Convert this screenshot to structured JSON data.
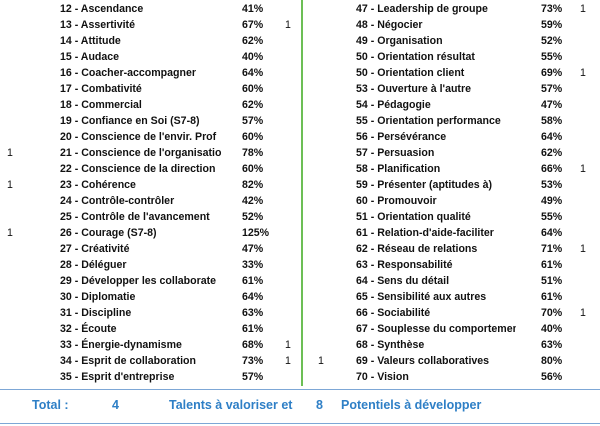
{
  "left_column": [
    {
      "mark": "",
      "label": "12 - Ascendance",
      "pct": "41%",
      "flag": ""
    },
    {
      "mark": "",
      "label": "13 - Assertivité",
      "pct": "67%",
      "flag": "1"
    },
    {
      "mark": "",
      "label": "14 - Attitude",
      "pct": "62%",
      "flag": ""
    },
    {
      "mark": "",
      "label": "15 - Audace",
      "pct": "40%",
      "flag": ""
    },
    {
      "mark": "",
      "label": "16 - Coacher-accompagner",
      "pct": "64%",
      "flag": ""
    },
    {
      "mark": "",
      "label": "17 - Combativité",
      "pct": "60%",
      "flag": ""
    },
    {
      "mark": "",
      "label": "18 - Commercial",
      "pct": "62%",
      "flag": ""
    },
    {
      "mark": "",
      "label": "19 - Confiance en Soi (S7-8)",
      "pct": "57%",
      "flag": ""
    },
    {
      "mark": "",
      "label": "20 - Conscience de l'envir. Prof",
      "pct": "60%",
      "flag": ""
    },
    {
      "mark": "1",
      "label": "21 - Conscience de l'organisatio",
      "pct": "78%",
      "flag": ""
    },
    {
      "mark": "",
      "label": "22 - Conscience de la direction",
      "pct": "60%",
      "flag": ""
    },
    {
      "mark": "1",
      "label": "23 - Cohérence",
      "pct": "82%",
      "flag": ""
    },
    {
      "mark": "",
      "label": "24 - Contrôle-contrôler",
      "pct": "42%",
      "flag": ""
    },
    {
      "mark": "",
      "label": "25 - Contrôle de l'avancement",
      "pct": "52%",
      "flag": ""
    },
    {
      "mark": "1",
      "label": "26 - Courage (S7-8)",
      "pct": "125%",
      "flag": ""
    },
    {
      "mark": "",
      "label": "27 - Créativité",
      "pct": "47%",
      "flag": ""
    },
    {
      "mark": "",
      "label": "28 - Déléguer",
      "pct": "33%",
      "flag": ""
    },
    {
      "mark": "",
      "label": "29 - Développer les collaborate",
      "pct": "61%",
      "flag": ""
    },
    {
      "mark": "",
      "label": "30 - Diplomatie",
      "pct": "64%",
      "flag": ""
    },
    {
      "mark": "",
      "label": "31 - Discipline",
      "pct": "63%",
      "flag": ""
    },
    {
      "mark": "",
      "label": "32 - Écoute",
      "pct": "61%",
      "flag": ""
    },
    {
      "mark": "",
      "label": "33 - Énergie-dynamisme",
      "pct": "68%",
      "flag": "1"
    },
    {
      "mark": "",
      "label": "34 - Esprit de collaboration",
      "pct": "73%",
      "flag": "1"
    },
    {
      "mark": "",
      "label": "35 - Esprit d'entreprise",
      "pct": "57%",
      "flag": ""
    }
  ],
  "right_column": [
    {
      "mark": "",
      "label": "47 - Leadership de groupe",
      "pct": "73%",
      "flag": "1"
    },
    {
      "mark": "",
      "label": "48 - Négocier",
      "pct": "59%",
      "flag": ""
    },
    {
      "mark": "",
      "label": "49 - Organisation",
      "pct": "52%",
      "flag": ""
    },
    {
      "mark": "",
      "label": "50 - Orientation résultat",
      "pct": "55%",
      "flag": ""
    },
    {
      "mark": "",
      "label": "50 - Orientation client",
      "pct": "69%",
      "flag": "1"
    },
    {
      "mark": "",
      "label": "53 - Ouverture à l'autre",
      "pct": "57%",
      "flag": ""
    },
    {
      "mark": "",
      "label": "54 - Pédagogie",
      "pct": "47%",
      "flag": ""
    },
    {
      "mark": "",
      "label": "55 - Orientation performance",
      "pct": "58%",
      "flag": ""
    },
    {
      "mark": "",
      "label": "56 - Persévérance",
      "pct": "64%",
      "flag": ""
    },
    {
      "mark": "",
      "label": "57 - Persuasion",
      "pct": "62%",
      "flag": ""
    },
    {
      "mark": "",
      "label": "58 - Planification",
      "pct": "66%",
      "flag": "1"
    },
    {
      "mark": "",
      "label": "59 - Présenter (aptitudes à)",
      "pct": "53%",
      "flag": ""
    },
    {
      "mark": "",
      "label": "60 - Promouvoir",
      "pct": "49%",
      "flag": ""
    },
    {
      "mark": "",
      "label": "51 - Orientation qualité",
      "pct": "55%",
      "flag": ""
    },
    {
      "mark": "",
      "label": "61 - Relation-d'aide-faciliter",
      "pct": "64%",
      "flag": ""
    },
    {
      "mark": "",
      "label": "62 - Réseau de relations",
      "pct": "71%",
      "flag": "1"
    },
    {
      "mark": "",
      "label": "63 - Responsabilité",
      "pct": "61%",
      "flag": ""
    },
    {
      "mark": "",
      "label": "64 - Sens du détail",
      "pct": "51%",
      "flag": ""
    },
    {
      "mark": "",
      "label": "65 - Sensibilité aux autres",
      "pct": "61%",
      "flag": ""
    },
    {
      "mark": "",
      "label": "66 - Sociabilité",
      "pct": "70%",
      "flag": "1"
    },
    {
      "mark": "",
      "label": "67 - Souplesse du comportement",
      "pct": "40%",
      "flag": ""
    },
    {
      "mark": "",
      "label": "68 - Synthèse",
      "pct": "63%",
      "flag": ""
    },
    {
      "mark": "1",
      "label": "69 - Valeurs collaboratives",
      "pct": "80%",
      "flag": ""
    },
    {
      "mark": "",
      "label": "70 - Vision",
      "pct": "56%",
      "flag": ""
    }
  ],
  "footer": {
    "total_label": "Total :",
    "talents_count": "4",
    "talents_label": "Talents à valoriser et",
    "potentials_count": "8",
    "potentials_label": "Potentiels à développer"
  },
  "colors": {
    "divider": "#6cbf55",
    "footer_text": "#2e7fc6",
    "footer_lines": "#7da7d6"
  }
}
